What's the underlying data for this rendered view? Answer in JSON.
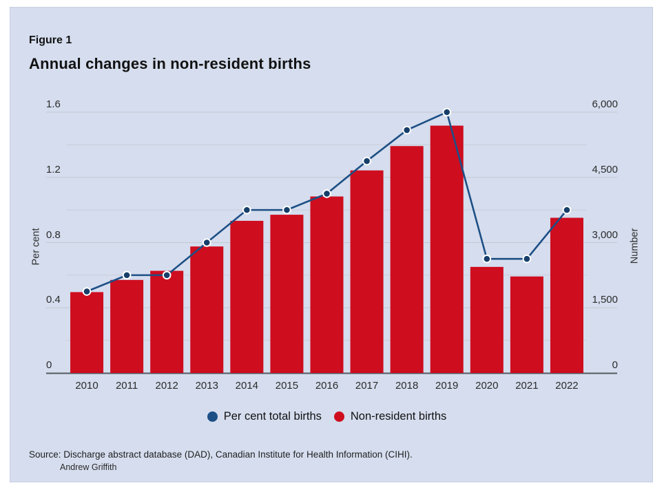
{
  "page": {
    "background": "#ffffff",
    "panel_background": "#d5ddee"
  },
  "figure_label": "Figure 1",
  "title": "Annual changes in non-resident births",
  "chart_data": {
    "type": "bar",
    "subtype": "dual-axis column chart with line overlay",
    "title": "Annual changes in non-resident births",
    "categories": [
      "2010",
      "2011",
      "2012",
      "2013",
      "2014",
      "2015",
      "2016",
      "2017",
      "2018",
      "2019",
      "2020",
      "2021",
      "2022"
    ],
    "series": [
      {
        "name": "Per cent total births",
        "type": "line",
        "axis": "left",
        "color": "#1d4f85",
        "marker_color": "#163e6a",
        "values": [
          0.5,
          0.6,
          0.6,
          0.8,
          1.0,
          1.0,
          1.1,
          1.3,
          1.49,
          1.6,
          0.7,
          0.7,
          1.0
        ]
      },
      {
        "name": "Non-resident births",
        "type": "bar",
        "axis": "right",
        "color": "#ce0d1f",
        "values": [
          1860,
          2140,
          2350,
          2910,
          3500,
          3640,
          4060,
          4660,
          5220,
          5690,
          2440,
          2220,
          3570
        ]
      }
    ],
    "left_axis": {
      "label": "Per cent",
      "range": [
        0,
        1.6
      ],
      "tick_values": [
        0,
        0.4,
        0.8,
        1.2,
        1.6
      ],
      "tick_labels": [
        "0",
        "0.4",
        "0.8",
        "1.2",
        "1.6"
      ],
      "minor_tick_values": [
        0.2,
        0.6,
        1.0,
        1.4
      ]
    },
    "right_axis": {
      "label": "Number",
      "range": [
        0,
        6000
      ],
      "tick_values": [
        0,
        1500,
        3000,
        4500,
        6000
      ],
      "tick_labels": [
        "0",
        "1,500",
        "3,000",
        "4,500",
        "6,000"
      ]
    },
    "grid": {
      "horizontal": true,
      "major_color": "#c3c8d2",
      "minor_color": "#c9cdd7",
      "axis_line_color": "#55585e"
    },
    "legend_position": "bottom"
  },
  "legend": {
    "items": [
      {
        "label": "Per cent total births",
        "color": "#1d4f85"
      },
      {
        "label": "Non-resident births",
        "color": "#ce0d1f"
      }
    ]
  },
  "source": {
    "line1": "Source: Discharge abstract database (DAD), Canadian Institute for Health Information (CIHI).",
    "line2": "Andrew Griffith"
  }
}
